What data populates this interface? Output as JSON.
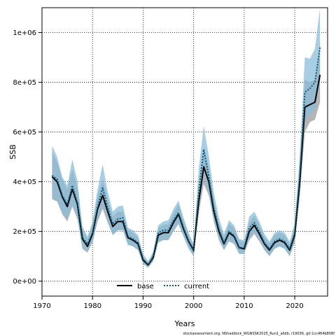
{
  "chart_data": {
    "type": "line",
    "xlabel": "Years",
    "ylabel": "SSB",
    "xlim": [
      1970,
      2026.5
    ],
    "ylim": [
      -60000,
      1100000
    ],
    "x_ticks": [
      1970,
      1980,
      1990,
      2000,
      2010,
      2020
    ],
    "y_ticks": [
      0,
      200000,
      400000,
      600000,
      800000,
      1000000
    ],
    "y_tick_labels": [
      "0e+00",
      "2e+05",
      "4e+05",
      "6e+05",
      "8e+05",
      "1e+06"
    ],
    "grid": true,
    "legend_position": "bottom",
    "x": [
      1972,
      1973,
      1974,
      1975,
      1976,
      1977,
      1978,
      1979,
      1980,
      1981,
      1982,
      1983,
      1984,
      1985,
      1986,
      1987,
      1988,
      1989,
      1990,
      1991,
      1992,
      1993,
      1994,
      1995,
      1996,
      1997,
      1998,
      1999,
      2000,
      2001,
      2002,
      2003,
      2004,
      2005,
      2006,
      2007,
      2008,
      2009,
      2010,
      2011,
      2012,
      2013,
      2014,
      2015,
      2016,
      2017,
      2018,
      2019,
      2020,
      2021,
      2022,
      2023,
      2024,
      2025
    ],
    "series": [
      {
        "name": "base",
        "color": "#000000",
        "line_style": "solid",
        "values": [
          420000,
          400000,
          340000,
          300000,
          370000,
          310000,
          170000,
          140000,
          190000,
          290000,
          345000,
          280000,
          220000,
          240000,
          240000,
          175000,
          165000,
          150000,
          85000,
          65000,
          95000,
          185000,
          195000,
          195000,
          235000,
          270000,
          210000,
          160000,
          125000,
          320000,
          460000,
          400000,
          280000,
          200000,
          150000,
          195000,
          180000,
          135000,
          130000,
          200000,
          225000,
          190000,
          150000,
          125000,
          155000,
          165000,
          155000,
          125000,
          185000,
          400000,
          700000,
          710000,
          720000,
          830000
        ],
        "band_lower": [
          330000,
          320000,
          270000,
          240000,
          300000,
          250000,
          130000,
          115000,
          155000,
          240000,
          290000,
          235000,
          185000,
          205000,
          205000,
          150000,
          140000,
          125000,
          70000,
          55000,
          80000,
          155000,
          165000,
          165000,
          200000,
          230000,
          180000,
          135000,
          100000,
          270000,
          390000,
          345000,
          240000,
          165000,
          125000,
          160000,
          150000,
          110000,
          110000,
          165000,
          190000,
          160000,
          125000,
          100000,
          130000,
          140000,
          130000,
          100000,
          155000,
          340000,
          600000,
          640000,
          650000,
          720000
        ],
        "band_upper": [
          520000,
          480000,
          410000,
          370000,
          450000,
          380000,
          210000,
          170000,
          230000,
          345000,
          410000,
          330000,
          260000,
          280000,
          280000,
          205000,
          195000,
          175000,
          100000,
          78000,
          112000,
          215000,
          228000,
          228000,
          270000,
          310000,
          245000,
          190000,
          150000,
          380000,
          540000,
          460000,
          325000,
          235000,
          180000,
          230000,
          215000,
          165000,
          155000,
          235000,
          265000,
          225000,
          180000,
          150000,
          185000,
          195000,
          185000,
          150000,
          215000,
          470000,
          810000,
          800000,
          810000,
          960000
        ]
      },
      {
        "name": "current",
        "color": "#0b5a7a",
        "line_style": "dotted",
        "band_color": "#8bbdd9",
        "values": [
          425000,
          410000,
          345000,
          310000,
          385000,
          315000,
          175000,
          150000,
          195000,
          300000,
          375000,
          295000,
          230000,
          250000,
          255000,
          180000,
          170000,
          155000,
          90000,
          65000,
          100000,
          195000,
          205000,
          205000,
          245000,
          275000,
          215000,
          160000,
          120000,
          360000,
          530000,
          420000,
          295000,
          210000,
          155000,
          200000,
          185000,
          135000,
          135000,
          215000,
          235000,
          200000,
          155000,
          130000,
          160000,
          170000,
          160000,
          130000,
          195000,
          420000,
          760000,
          775000,
          800000,
          940000
        ],
        "band_lower": [
          335000,
          325000,
          275000,
          250000,
          305000,
          255000,
          135000,
          120000,
          155000,
          245000,
          305000,
          240000,
          185000,
          205000,
          205000,
          145000,
          140000,
          125000,
          70000,
          54000,
          82000,
          160000,
          168000,
          168000,
          200000,
          230000,
          180000,
          130000,
          100000,
          290000,
          430000,
          350000,
          245000,
          170000,
          125000,
          165000,
          150000,
          110000,
          110000,
          175000,
          195000,
          165000,
          125000,
          105000,
          130000,
          140000,
          130000,
          105000,
          160000,
          350000,
          640000,
          670000,
          690000,
          800000
        ],
        "band_upper": [
          545000,
          500000,
          420000,
          385000,
          490000,
          405000,
          220000,
          180000,
          240000,
          370000,
          470000,
          360000,
          280000,
          300000,
          305000,
          215000,
          205000,
          185000,
          110000,
          80000,
          120000,
          225000,
          240000,
          245000,
          290000,
          325000,
          255000,
          195000,
          145000,
          450000,
          625000,
          505000,
          355000,
          255000,
          190000,
          245000,
          225000,
          170000,
          165000,
          260000,
          280000,
          240000,
          190000,
          160000,
          195000,
          205000,
          195000,
          160000,
          235000,
          510000,
          900000,
          895000,
          935000,
          1100000
        ]
      }
    ]
  },
  "footer": "stockassessment.org, NShaddock_WGNSSK2025_Run1_alldb, r19036, git:1cc464b808f"
}
